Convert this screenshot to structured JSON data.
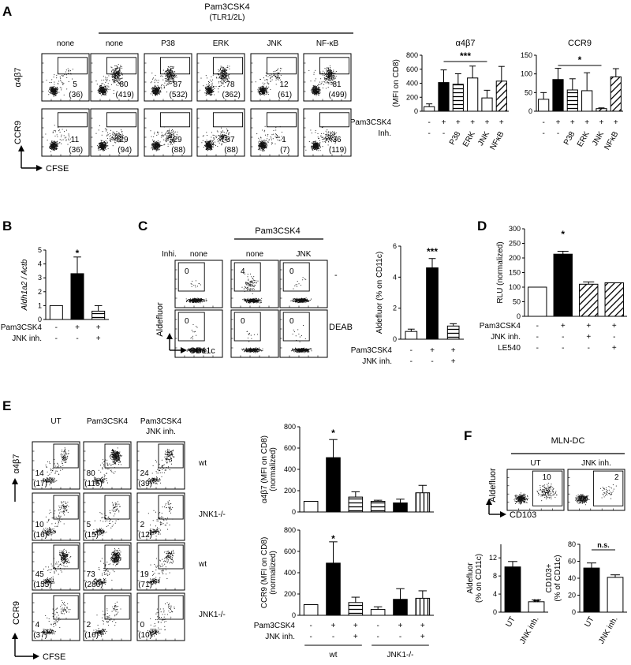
{
  "panel_letters": [
    "A",
    "B",
    "C",
    "D",
    "E",
    "F"
  ],
  "panelA": {
    "treatment": "Pam3CSK4",
    "treatment_sub": "(TLR1/2L)",
    "col_labels": [
      "none",
      "none",
      "P38",
      "ERK",
      "JNK",
      "NF-κB"
    ],
    "row_labels": [
      "α4β7",
      "CCR9"
    ],
    "x_axis": "CFSE",
    "a4b7_values": [
      [
        "5",
        "(36)"
      ],
      [
        "80",
        "(419)"
      ],
      [
        "87",
        "(532)"
      ],
      [
        "78",
        "(362)"
      ],
      [
        "12",
        "(61)"
      ],
      [
        "81",
        "(499)"
      ]
    ],
    "ccr9_values": [
      [
        "11",
        "(36)"
      ],
      [
        "29",
        "(94)"
      ],
      [
        "29",
        "(88)"
      ],
      [
        "37",
        "(88)"
      ],
      [
        "1",
        "(7)"
      ],
      [
        "36",
        "(119)"
      ]
    ],
    "row_pam": "Pam3CSK4",
    "row_inh": "Inh.",
    "pam_signs": [
      "-",
      "+",
      "+",
      "+",
      "+",
      "+"
    ],
    "inh_signs": [
      "-",
      "-",
      "P38",
      "ERK",
      "JNK",
      "NFκB"
    ]
  },
  "panelB": {
    "row_pam": "Pam3CSK4",
    "row_jnk": "JNK inh.",
    "pam_signs": [
      "-",
      "+",
      "+"
    ],
    "jnk_signs": [
      "-",
      "-",
      "+"
    ]
  },
  "panelC": {
    "inhi_label": "Inhi.",
    "treatment": "Pam3CSK4",
    "col_labels": [
      "none",
      "none",
      "JNK"
    ],
    "row_labels": [
      "-",
      "DEAB"
    ],
    "y_axis": "Aldefluor",
    "x_axis": "CD11c",
    "top_values": [
      "0",
      "4",
      "0"
    ],
    "bottom_values": [
      "0",
      "0",
      "0"
    ],
    "row_pam": "Pam3CSK4",
    "row_jnk": "JNK inh.",
    "pam_signs": [
      "-",
      "+",
      "+"
    ],
    "jnk_signs": [
      "-",
      "-",
      "+"
    ]
  },
  "panelD": {
    "row_pam": "Pam3CSK4",
    "row_jnk": "JNK inh.",
    "row_le": "LE540",
    "pam_signs": [
      "-",
      "+",
      "+",
      "+"
    ],
    "jnk_signs": [
      "-",
      "-",
      "+",
      "-"
    ],
    "le_signs": [
      "-",
      "-",
      "-",
      "+"
    ]
  },
  "panelE": {
    "col_labels": [
      "UT",
      "Pam3CSK4",
      "Pam3CSK4"
    ],
    "col_sub": [
      "",
      "",
      "JNK inh."
    ],
    "row_labels": [
      "wt",
      "JNK1-/-",
      "wt",
      "JNK1-/-"
    ],
    "a4b7_label": "α4β7",
    "ccr9_label": "CCR9",
    "x_axis": "CFSE",
    "values": [
      [
        [
          "14",
          "(17)"
        ],
        [
          "80",
          "(116)"
        ],
        [
          "24",
          "(39)"
        ]
      ],
      [
        [
          "10",
          "(16)"
        ],
        [
          "5",
          "(15)"
        ],
        [
          "2",
          "(12)"
        ]
      ],
      [
        [
          "45",
          "(155)"
        ],
        [
          "73",
          "(286)"
        ],
        [
          "19",
          "(71)"
        ]
      ],
      [
        [
          "4",
          "(37)"
        ],
        [
          "2",
          "(16)"
        ],
        [
          "0",
          "(10)"
        ]
      ]
    ],
    "row_pam": "Pam3CSK4",
    "row_jnk": "JNK inh.",
    "pam_signs": [
      "-",
      "+",
      "+",
      "-",
      "+",
      "+"
    ],
    "jnk_signs": [
      "-",
      "-",
      "+",
      "-",
      "-",
      "+"
    ],
    "group_wt": "wt",
    "group_ko": "JNK1-/-"
  },
  "panelF": {
    "title": "MLN-DC",
    "col_labels": [
      "UT",
      "JNK inh."
    ],
    "gate_values": [
      "10",
      "2"
    ],
    "y_axis": "Aldefluor",
    "x_axis": "CD103",
    "bar_cats": [
      "UT",
      "JNK inh."
    ]
  },
  "chart_data": [
    {
      "id": "A-a4b7",
      "type": "bar",
      "ylabel": "(MFI on CD8)",
      "title": "α4β7",
      "ylim": [
        0,
        800
      ],
      "yticks": [
        "0",
        "200",
        "400",
        "600",
        "800"
      ],
      "categories": [
        "none",
        "Pam3CSK4",
        "Pam3CSK4 + P38",
        "Pam3CSK4 + ERK",
        "Pam3CSK4 + JNK",
        "Pam3CSK4 + NFκB"
      ],
      "values": [
        65,
        410,
        385,
        475,
        190,
        430
      ],
      "errors": [
        40,
        180,
        150,
        170,
        110,
        210
      ],
      "fills": [
        "white",
        "black",
        "hlines",
        "white",
        "white",
        "diag"
      ],
      "annotation": "***"
    },
    {
      "id": "A-ccr9",
      "type": "bar",
      "ylabel": "",
      "title": "CCR9",
      "ylim": [
        0,
        150
      ],
      "yticks": [
        "0",
        "50",
        "100",
        "150"
      ],
      "categories": [
        "none",
        "Pam3CSK4",
        "Pam3CSK4 + P38",
        "Pam3CSK4 + ERK",
        "Pam3CSK4 + JNK",
        "Pam3CSK4 + NFκB"
      ],
      "values": [
        32,
        85,
        57,
        55,
        7,
        92
      ],
      "errors": [
        18,
        30,
        30,
        48,
        2,
        22
      ],
      "fills": [
        "white",
        "black",
        "hlines",
        "white",
        "diag",
        "diag"
      ],
      "annotation": "*"
    },
    {
      "id": "B",
      "type": "bar",
      "ylabel": "Aldh1a2 / Actb",
      "ylim": [
        0,
        5
      ],
      "yticks": [
        "0",
        "1",
        "2",
        "3",
        "4",
        "5"
      ],
      "categories": [
        "none",
        "Pam3CSK4",
        "Pam3CSK4 + JNK inh."
      ],
      "values": [
        1.0,
        3.3,
        0.6
      ],
      "errors": [
        0,
        1.2,
        0.4
      ],
      "fills": [
        "white",
        "black",
        "hlines"
      ],
      "annotation": "*"
    },
    {
      "id": "C",
      "type": "bar",
      "ylabel": "Aldefluor (% on CD11c)",
      "ylim": [
        0,
        6
      ],
      "yticks": [
        "0",
        "2",
        "4",
        "6"
      ],
      "categories": [
        "none",
        "Pam3CSK4",
        "Pam3CSK4 + JNK inh."
      ],
      "values": [
        0.5,
        4.6,
        0.85
      ],
      "errors": [
        0.15,
        0.6,
        0.15
      ],
      "fills": [
        "white",
        "black",
        "hlines"
      ],
      "annotation": "***"
    },
    {
      "id": "D",
      "type": "bar",
      "ylabel": "RLU (normalized)",
      "ylim": [
        0,
        300
      ],
      "yticks": [
        "0",
        "50",
        "100",
        "150",
        "200",
        "250",
        "300"
      ],
      "categories": [
        "none",
        "Pam3CSK4",
        "Pam3CSK4 + JNK inh.",
        "Pam3CSK4 + LE540"
      ],
      "values": [
        100,
        213,
        110,
        115
      ],
      "errors": [
        0,
        10,
        8,
        0
      ],
      "fills": [
        "white",
        "black",
        "diag",
        "diag"
      ],
      "annotation": "*"
    },
    {
      "id": "E-a4b7",
      "type": "bar",
      "ylabel": "α4β7 (MFI on CD8) (normalized)",
      "ylim": [
        0,
        800
      ],
      "yticks": [
        "0",
        "200",
        "400",
        "600",
        "800"
      ],
      "categories": [
        "wt UT",
        "wt Pam3CSK4",
        "wt Pam3CSK4 + JNK inh.",
        "JNK1-/- UT",
        "JNK1-/- Pam3CSK4",
        "JNK1-/- Pam3CSK4 + JNK inh."
      ],
      "values": [
        100,
        510,
        140,
        100,
        85,
        180
      ],
      "errors": [
        0,
        170,
        50,
        10,
        35,
        70
      ],
      "fills": [
        "white",
        "black",
        "hlines",
        "hlines",
        "black",
        "vlines"
      ],
      "annotation": "*"
    },
    {
      "id": "E-ccr9",
      "type": "bar",
      "ylabel": "CCR9 (MFI on CD8) (normalized)",
      "ylim": [
        0,
        800
      ],
      "yticks": [
        "0",
        "200",
        "400",
        "600",
        "800"
      ],
      "categories": [
        "wt UT",
        "wt Pam3CSK4",
        "wt Pam3CSK4 + JNK inh.",
        "JNK1-/- UT",
        "JNK1-/- Pam3CSK4",
        "JNK1-/- Pam3CSK4 + JNK inh."
      ],
      "values": [
        100,
        490,
        120,
        55,
        150,
        160
      ],
      "errors": [
        0,
        200,
        50,
        25,
        100,
        70
      ],
      "fills": [
        "white",
        "black",
        "hlines",
        "white",
        "black",
        "vlines"
      ],
      "annotation": "*"
    },
    {
      "id": "F-aldefluor",
      "type": "bar",
      "ylabel": "Aldefluor (% on CD11c)",
      "ylim": [
        0,
        15
      ],
      "yticks": [
        "0",
        "4",
        "8",
        "12"
      ],
      "categories": [
        "UT",
        "JNK inh."
      ],
      "values": [
        10,
        2.3
      ],
      "errors": [
        1.2,
        0.4
      ],
      "fills": [
        "black",
        "white"
      ],
      "annotation": "**"
    },
    {
      "id": "F-cd103",
      "type": "bar",
      "ylabel": "CD103+ (% of CD11c)",
      "ylim": [
        0,
        80
      ],
      "yticks": [
        "0",
        "20",
        "40",
        "60",
        "80"
      ],
      "categories": [
        "UT",
        "JNK inh."
      ],
      "values": [
        52,
        41
      ],
      "errors": [
        6,
        3
      ],
      "fills": [
        "black",
        "white"
      ],
      "annotation": "n.s."
    }
  ]
}
